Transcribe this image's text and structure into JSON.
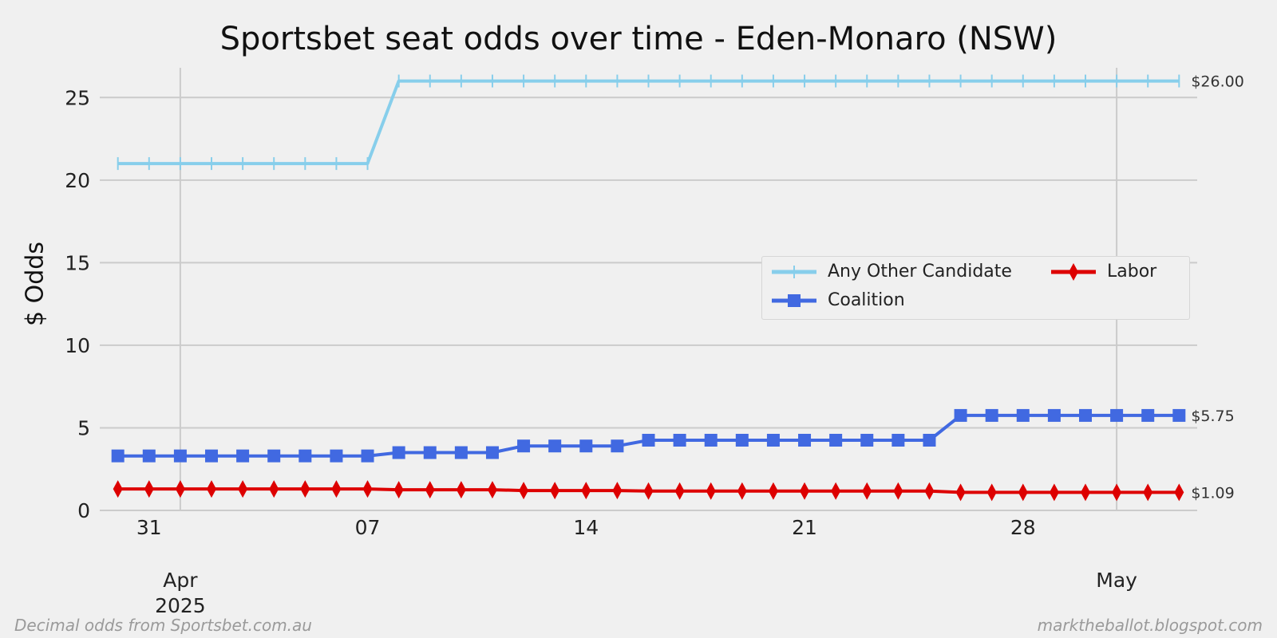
{
  "title": "Sportsbet seat odds over time - Eden-Monaro (NSW)",
  "footer_left": "Decimal odds from Sportsbet.com.au",
  "footer_right": "marktheballot.blogspot.com",
  "chart_data": {
    "type": "line",
    "title": "Sportsbet seat odds over time - Eden-Monaro (NSW)",
    "xlabel": "",
    "ylabel": "$ Odds",
    "ylim": [
      0,
      26.8
    ],
    "yticks": [
      0,
      5,
      10,
      15,
      20,
      25
    ],
    "grid": true,
    "legend_position": "center-right",
    "x": [
      "2025-03-30",
      "2025-03-31",
      "2025-04-01",
      "2025-04-02",
      "2025-04-03",
      "2025-04-04",
      "2025-04-05",
      "2025-04-06",
      "2025-04-07",
      "2025-04-08",
      "2025-04-09",
      "2025-04-10",
      "2025-04-11",
      "2025-04-12",
      "2025-04-13",
      "2025-04-14",
      "2025-04-15",
      "2025-04-16",
      "2025-04-17",
      "2025-04-18",
      "2025-04-19",
      "2025-04-20",
      "2025-04-21",
      "2025-04-22",
      "2025-04-23",
      "2025-04-24",
      "2025-04-25",
      "2025-04-26",
      "2025-04-27",
      "2025-04-28",
      "2025-04-29",
      "2025-04-30",
      "2025-05-01",
      "2025-05-02",
      "2025-05-03"
    ],
    "xtick_labels": [
      {
        "date": "2025-03-31",
        "label": "31"
      },
      {
        "date": "2025-04-07",
        "label": "07"
      },
      {
        "date": "2025-04-14",
        "label": "14"
      },
      {
        "date": "2025-04-21",
        "label": "21"
      },
      {
        "date": "2025-04-28",
        "label": "28"
      }
    ],
    "major_ticks": [
      {
        "date": "2025-04-01",
        "label": "Apr",
        "sublabel": "2025"
      },
      {
        "date": "2025-05-01",
        "label": "May",
        "sublabel": ""
      }
    ],
    "series": [
      {
        "name": "Any Other Candidate",
        "color": "#87ceeb",
        "marker": "plus",
        "end_label": "$26.00",
        "values": [
          21,
          21,
          21,
          21,
          21,
          21,
          21,
          21,
          21,
          26,
          26,
          26,
          26,
          26,
          26,
          26,
          26,
          26,
          26,
          26,
          26,
          26,
          26,
          26,
          26,
          26,
          26,
          26,
          26,
          26,
          26,
          26,
          26,
          26,
          26
        ]
      },
      {
        "name": "Coalition",
        "color": "#4169e1",
        "marker": "square",
        "end_label": "$5.75",
        "values": [
          3.3,
          3.3,
          3.3,
          3.3,
          3.3,
          3.3,
          3.3,
          3.3,
          3.3,
          3.5,
          3.5,
          3.5,
          3.5,
          3.9,
          3.9,
          3.9,
          3.9,
          4.25,
          4.25,
          4.25,
          4.25,
          4.25,
          4.25,
          4.25,
          4.25,
          4.25,
          4.25,
          5.75,
          5.75,
          5.75,
          5.75,
          5.75,
          5.75,
          5.75,
          5.75
        ]
      },
      {
        "name": "Labor",
        "color": "#dd0000",
        "marker": "diamond",
        "end_label": "$1.09",
        "values": [
          1.3,
          1.3,
          1.3,
          1.3,
          1.3,
          1.3,
          1.3,
          1.3,
          1.3,
          1.25,
          1.25,
          1.25,
          1.25,
          1.2,
          1.2,
          1.2,
          1.2,
          1.17,
          1.17,
          1.17,
          1.17,
          1.17,
          1.17,
          1.17,
          1.17,
          1.17,
          1.17,
          1.09,
          1.09,
          1.09,
          1.09,
          1.09,
          1.09,
          1.09,
          1.09
        ]
      }
    ]
  }
}
